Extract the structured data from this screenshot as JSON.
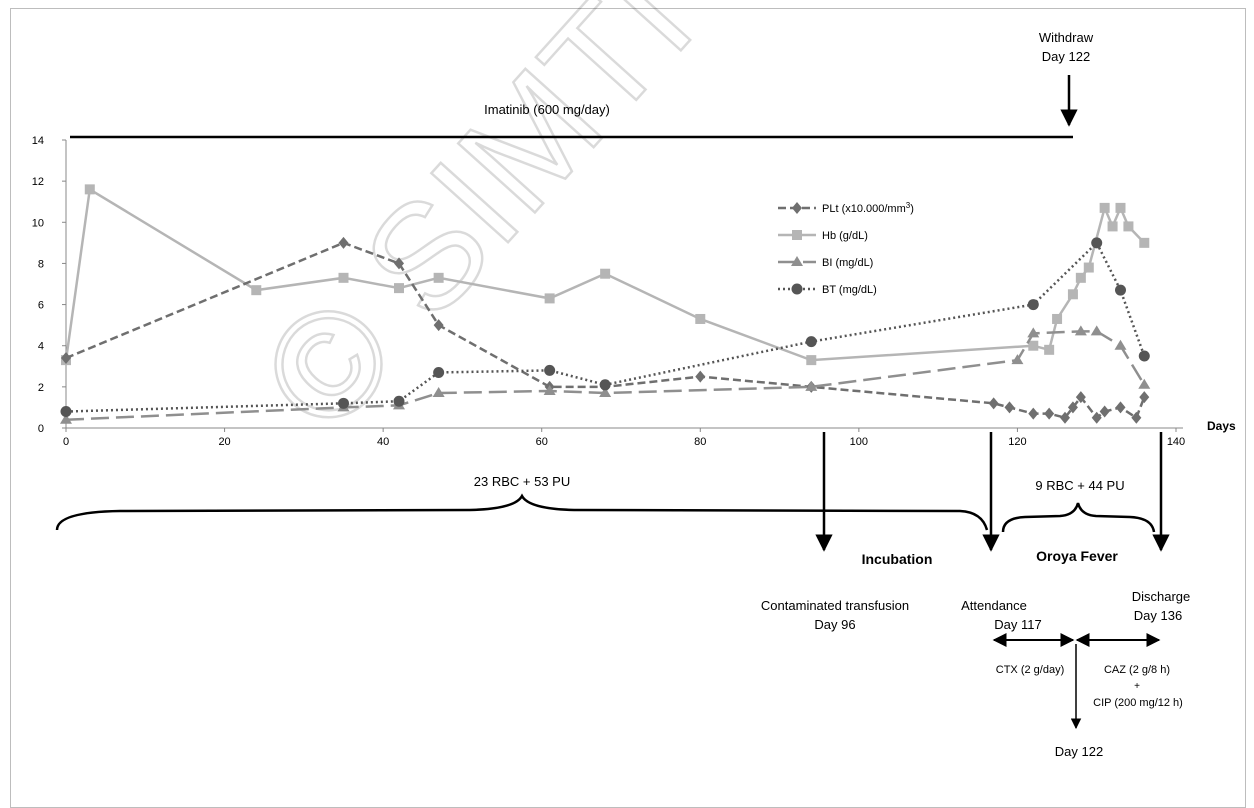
{
  "chart_data": {
    "type": "line",
    "xlim": [
      0,
      140
    ],
    "ylim": [
      0,
      14
    ],
    "x_ticks": [
      0,
      20,
      40,
      60,
      80,
      100,
      120,
      140
    ],
    "y_ticks": [
      0,
      2,
      4,
      6,
      8,
      10,
      12,
      14
    ],
    "xlabel": "Days",
    "grid": false,
    "legend_position": "right",
    "series": [
      {
        "name": "PLt (x10.000/mm",
        "name_sup": "3",
        "name_tail": ")",
        "color": "#6f6f6f",
        "dash": "dashed",
        "marker": "diamond",
        "points": [
          [
            0,
            3.4
          ],
          [
            35,
            9.0
          ],
          [
            42,
            8.0
          ],
          [
            47,
            5.0
          ],
          [
            61,
            2.0
          ],
          [
            68,
            2.0
          ],
          [
            80,
            2.5
          ],
          [
            94,
            2.0
          ],
          [
            117,
            1.2
          ],
          [
            119,
            1.0
          ],
          [
            122,
            0.7
          ],
          [
            124,
            0.7
          ],
          [
            126,
            0.5
          ],
          [
            127,
            1.0
          ],
          [
            128,
            1.5
          ],
          [
            130,
            0.5
          ],
          [
            131,
            0.8
          ],
          [
            133,
            1.0
          ],
          [
            135,
            0.5
          ],
          [
            136,
            1.5
          ]
        ]
      },
      {
        "name": "Hb (g/dL)",
        "color": "#b5b5b5",
        "dash": "solid",
        "marker": "square",
        "points": [
          [
            0,
            3.3
          ],
          [
            3,
            11.6
          ],
          [
            24,
            6.7
          ],
          [
            35,
            7.3
          ],
          [
            42,
            6.8
          ],
          [
            47,
            7.3
          ],
          [
            61,
            6.3
          ],
          [
            68,
            7.5
          ],
          [
            80,
            5.3
          ],
          [
            94,
            3.3
          ],
          [
            122,
            4.0
          ],
          [
            124,
            3.8
          ],
          [
            125,
            5.3
          ],
          [
            127,
            6.5
          ],
          [
            128,
            7.3
          ],
          [
            129,
            7.8
          ],
          [
            131,
            10.7
          ],
          [
            132,
            9.8
          ],
          [
            133,
            10.7
          ],
          [
            134,
            9.8
          ],
          [
            136,
            9.0
          ]
        ]
      },
      {
        "name": "BI (mg/dL)",
        "color": "#8f8f8f",
        "dash": "longdash",
        "marker": "triangle",
        "points": [
          [
            0,
            0.4
          ],
          [
            35,
            1.0
          ],
          [
            42,
            1.1
          ],
          [
            47,
            1.7
          ],
          [
            61,
            1.8
          ],
          [
            68,
            1.7
          ],
          [
            94,
            2.0
          ],
          [
            120,
            3.3
          ],
          [
            122,
            4.6
          ],
          [
            128,
            4.7
          ],
          [
            130,
            4.7
          ],
          [
            133,
            4.0
          ],
          [
            136,
            2.1
          ]
        ]
      },
      {
        "name": "BT (mg/dL)",
        "color": "#555555",
        "dash": "dotted",
        "marker": "circle",
        "points": [
          [
            0,
            0.8
          ],
          [
            35,
            1.2
          ],
          [
            42,
            1.3
          ],
          [
            47,
            2.7
          ],
          [
            61,
            2.8
          ],
          [
            68,
            2.1
          ],
          [
            94,
            4.2
          ],
          [
            122,
            6.0
          ],
          [
            130,
            9.0
          ],
          [
            133,
            6.7
          ],
          [
            136,
            3.5
          ]
        ]
      }
    ],
    "annotations": {
      "imatinib": "Imatinib (600 mg/day)",
      "withdraw_line1": "Withdraw",
      "withdraw_line2": "Day 122",
      "brace_left_label": "23 RBC + 53 PU",
      "brace_right_label": "9 RBC + 44 PU",
      "incubation": "Incubation",
      "oroya_fever": "Oroya Fever",
      "contaminated_line1": "Contaminated transfusion",
      "contaminated_line2": "Day 96",
      "attendance_line1": "Attendance",
      "attendance_line2": "Day 117",
      "discharge_line1": "Discharge",
      "discharge_line2": "Day 136",
      "ctx": "CTX (2 g/day)",
      "caz": "CAZ (2 g/8 h)",
      "plus": "+",
      "cip": "CIP (200 mg/12 h)",
      "day122_bottom": "Day 122"
    },
    "watermark": "© SIMTI Servizi"
  }
}
